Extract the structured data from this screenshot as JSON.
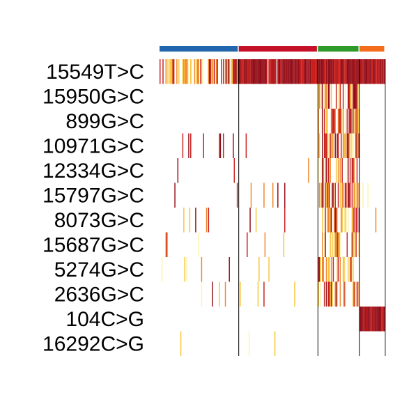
{
  "chart_data": {
    "type": "heatmap",
    "title": "",
    "xlabel": "",
    "ylabel": "",
    "legend": "none",
    "rows": [
      "15549T>C",
      "15950G>C",
      "899G>C",
      "10971G>C",
      "12334G>C",
      "15797G>C",
      "8073G>C",
      "15687G>C",
      "5274G>C",
      "2636G>C",
      "104C>G",
      "16292C>G"
    ],
    "column_groups": [
      {
        "color": "#2166ac",
        "columns": 80
      },
      {
        "color": "#c5102a",
        "columns": 80
      },
      {
        "color": "#2e9a2a",
        "columns": 42
      },
      {
        "color": "#f46d1b",
        "columns": 26
      }
    ],
    "value_scale": {
      "min": 0,
      "max": 1,
      "colors": [
        "#ffffff",
        "#fff2b0",
        "#f9c43a",
        "#f0862a",
        "#c8201e",
        "#930f1a"
      ]
    },
    "group_density": [
      [
        0.6,
        0.97,
        1.0,
        1.0
      ],
      [
        0.0,
        0.0,
        0.6,
        0.0
      ],
      [
        0.0,
        0.0,
        0.7,
        0.0
      ],
      [
        0.06,
        0.05,
        0.75,
        0.0
      ],
      [
        0.04,
        0.02,
        0.5,
        0.05
      ],
      [
        0.03,
        0.05,
        0.7,
        0.05
      ],
      [
        0.02,
        0.03,
        0.6,
        0.02
      ],
      [
        0.04,
        0.04,
        0.5,
        0.02
      ],
      [
        0.03,
        0.02,
        0.5,
        0.02
      ],
      [
        0.05,
        0.03,
        0.45,
        0.02
      ],
      [
        0.02,
        0.02,
        0.0,
        0.97
      ],
      [
        0.05,
        0.04,
        0.0,
        0.0
      ]
    ]
  }
}
